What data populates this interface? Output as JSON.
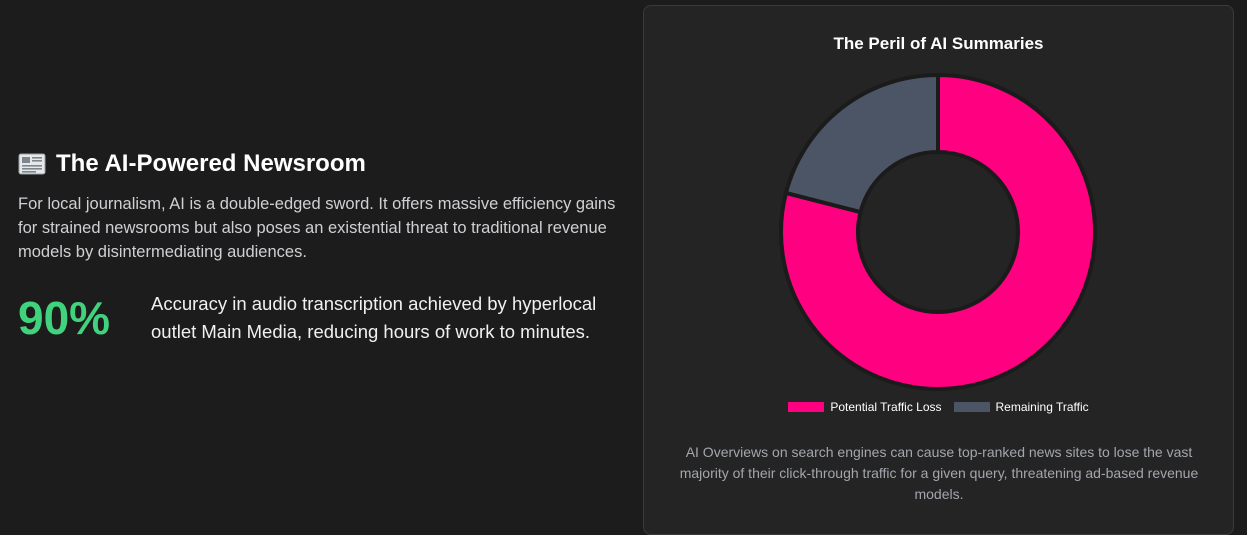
{
  "left": {
    "heading_icon": "newspaper-icon",
    "heading": "The AI-Powered Newsroom",
    "intro": "For local journalism, AI is a double-edged sword. It offers massive efficiency gains for strained newsrooms but also poses an existential threat to traditional revenue models by disintermediating audiences.",
    "stat_value": "90%",
    "stat_description": "Accuracy in audio transcription achieved by hyperlocal outlet Main Media, reducing hours of work to minutes.",
    "stat_color": "#41d27d"
  },
  "card": {
    "caption": "AI Overviews on search engines can cause top-ranked news sites to lose the vast majority of their click-through traffic for a given query, threatening ad-based revenue models."
  },
  "chart_data": {
    "type": "pie",
    "variant": "doughnut",
    "title": "The Peril of AI Summaries",
    "categories": [
      "Potential Traffic Loss",
      "Remaining Traffic"
    ],
    "values": [
      79,
      21
    ],
    "colors": [
      "#ff0080",
      "#4b5565"
    ],
    "legend_position": "bottom"
  }
}
